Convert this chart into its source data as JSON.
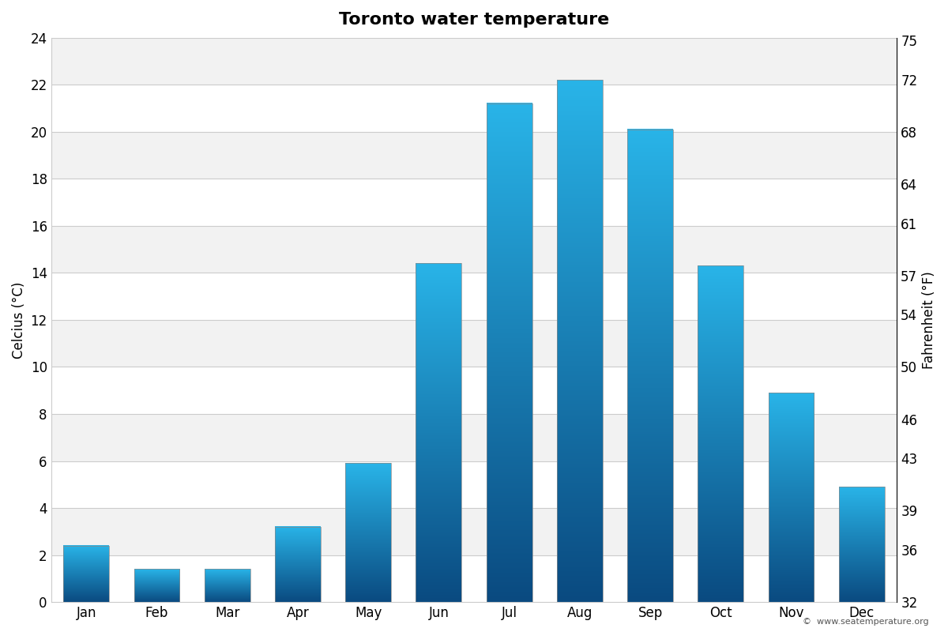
{
  "title": "Toronto water temperature",
  "months": [
    "Jan",
    "Feb",
    "Mar",
    "Apr",
    "May",
    "Jun",
    "Jul",
    "Aug",
    "Sep",
    "Oct",
    "Nov",
    "Dec"
  ],
  "celsius_values": [
    2.4,
    1.4,
    1.4,
    3.2,
    5.9,
    14.4,
    21.2,
    22.2,
    20.1,
    14.3,
    8.9,
    4.9
  ],
  "ylabel_left": "Celcius (°C)",
  "ylabel_right": "Fahrenheit (°F)",
  "ylim_celsius": [
    0,
    24
  ],
  "yticks_celsius": [
    0,
    2,
    4,
    6,
    8,
    10,
    12,
    14,
    16,
    18,
    20,
    22,
    24
  ],
  "yticks_fahrenheit": [
    32,
    36,
    39,
    43,
    46,
    50,
    54,
    57,
    61,
    64,
    68,
    72,
    75
  ],
  "background_color": "#ffffff",
  "plot_bg_color": "#ffffff",
  "stripe_color_light": "#f2f2f2",
  "stripe_color_white": "#ffffff",
  "watermark": "©  www.seatemperature.org",
  "bar_color_top": "#29b4e8",
  "bar_color_bottom": "#0a4a80",
  "title_fontsize": 16,
  "axis_fontsize": 12,
  "bar_width": 0.65
}
